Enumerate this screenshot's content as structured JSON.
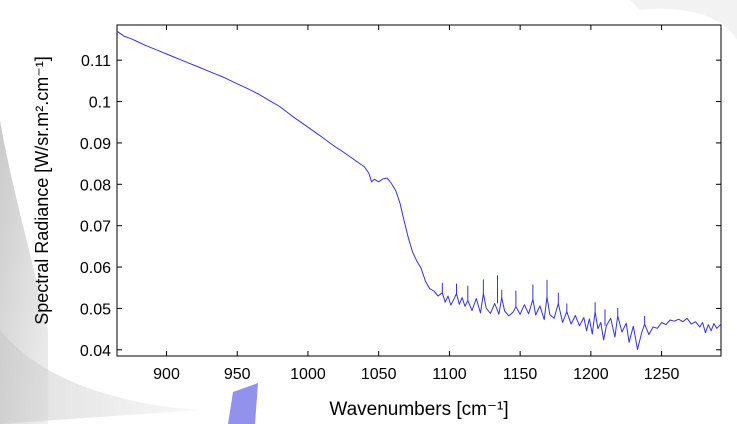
{
  "chart_data": {
    "type": "line",
    "title": "",
    "xlabel": "Wavenumbers [cm⁻¹]",
    "ylabel": "Spectral Radiance [W/sr.m².cm⁻¹]",
    "xlim": [
      865,
      1292
    ],
    "ylim": [
      0.0385,
      0.1185
    ],
    "xticks": [
      900,
      950,
      1000,
      1050,
      1100,
      1150,
      1200,
      1250
    ],
    "yticks": [
      0.04,
      0.05,
      0.06,
      0.07,
      0.08,
      0.09,
      0.1,
      0.11
    ],
    "ytick_labels": [
      "0.04",
      "0.05",
      "0.06",
      "0.07",
      "0.08",
      "0.09",
      "0.1",
      "0.11"
    ],
    "grid": false,
    "line_color": "#3333dd",
    "series": [
      {
        "points": [
          [
            865,
            0.117
          ],
          [
            870,
            0.1158
          ],
          [
            875,
            0.1152
          ],
          [
            880,
            0.1144
          ],
          [
            885,
            0.1136
          ],
          [
            890,
            0.1129
          ],
          [
            895,
            0.1122
          ],
          [
            900,
            0.1115
          ],
          [
            905,
            0.1108
          ],
          [
            910,
            0.1101
          ],
          [
            915,
            0.1094
          ],
          [
            920,
            0.1087
          ],
          [
            925,
            0.108
          ],
          [
            930,
            0.1073
          ],
          [
            935,
            0.1066
          ],
          [
            940,
            0.1059
          ],
          [
            945,
            0.1051
          ],
          [
            950,
            0.1043
          ],
          [
            955,
            0.1035
          ],
          [
            960,
            0.1027
          ],
          [
            965,
            0.1018
          ],
          [
            970,
            0.1008
          ],
          [
            975,
            0.0998
          ],
          [
            980,
            0.0988
          ],
          [
            985,
            0.0975
          ],
          [
            990,
            0.0962
          ],
          [
            995,
            0.095
          ],
          [
            1000,
            0.0938
          ],
          [
            1005,
            0.0926
          ],
          [
            1010,
            0.0914
          ],
          [
            1015,
            0.0901
          ],
          [
            1020,
            0.0889
          ],
          [
            1025,
            0.0878
          ],
          [
            1030,
            0.0866
          ],
          [
            1035,
            0.0854
          ],
          [
            1040,
            0.0842
          ],
          [
            1043,
            0.0827
          ],
          [
            1045,
            0.0806
          ],
          [
            1047,
            0.0812
          ],
          [
            1050,
            0.0806
          ],
          [
            1053,
            0.0813
          ],
          [
            1056,
            0.0815
          ],
          [
            1059,
            0.0802
          ],
          [
            1062,
            0.0785
          ],
          [
            1065,
            0.0755
          ],
          [
            1068,
            0.0712
          ],
          [
            1071,
            0.067
          ],
          [
            1074,
            0.0636
          ],
          [
            1077,
            0.0614
          ],
          [
            1080,
            0.0597
          ],
          [
            1083,
            0.0566
          ],
          [
            1086,
            0.0548
          ],
          [
            1089,
            0.0542
          ],
          [
            1092,
            0.053
          ],
          [
            1095,
            0.0538
          ],
          [
            1097,
            0.0515
          ],
          [
            1099,
            0.053
          ],
          [
            1101,
            0.0508
          ],
          [
            1103,
            0.0521
          ],
          [
            1105,
            0.0536
          ],
          [
            1107,
            0.051
          ],
          [
            1109,
            0.0526
          ],
          [
            1111,
            0.0505
          ],
          [
            1113,
            0.0519
          ],
          [
            1116,
            0.0495
          ],
          [
            1119,
            0.0524
          ],
          [
            1122,
            0.0489
          ],
          [
            1124,
            0.0536
          ],
          [
            1126,
            0.0501
          ],
          [
            1129,
            0.0488
          ],
          [
            1132,
            0.0512
          ],
          [
            1135,
            0.0486
          ],
          [
            1137,
            0.0526
          ],
          [
            1139,
            0.0494
          ],
          [
            1142,
            0.0482
          ],
          [
            1145,
            0.0491
          ],
          [
            1147,
            0.0504
          ],
          [
            1150,
            0.0486
          ],
          [
            1153,
            0.0509
          ],
          [
            1156,
            0.0487
          ],
          [
            1159,
            0.0522
          ],
          [
            1161,
            0.0484
          ],
          [
            1164,
            0.0506
          ],
          [
            1167,
            0.0473
          ],
          [
            1169,
            0.0528
          ],
          [
            1171,
            0.0485
          ],
          [
            1174,
            0.0476
          ],
          [
            1177,
            0.0512
          ],
          [
            1180,
            0.0466
          ],
          [
            1183,
            0.0492
          ],
          [
            1186,
            0.0462
          ],
          [
            1189,
            0.0483
          ],
          [
            1192,
            0.0458
          ],
          [
            1195,
            0.0478
          ],
          [
            1197,
            0.0446
          ],
          [
            1199,
            0.0475
          ],
          [
            1201,
            0.0438
          ],
          [
            1203,
            0.0492
          ],
          [
            1205,
            0.0451
          ],
          [
            1207,
            0.0466
          ],
          [
            1209,
            0.0424
          ],
          [
            1211,
            0.0458
          ],
          [
            1214,
            0.0476
          ],
          [
            1217,
            0.0431
          ],
          [
            1219,
            0.0482
          ],
          [
            1222,
            0.0443
          ],
          [
            1225,
            0.0464
          ],
          [
            1227,
            0.0418
          ],
          [
            1230,
            0.0457
          ],
          [
            1233,
            0.0401
          ],
          [
            1236,
            0.0442
          ],
          [
            1238,
            0.0462
          ],
          [
            1241,
            0.0437
          ],
          [
            1244,
            0.0455
          ],
          [
            1247,
            0.0452
          ],
          [
            1250,
            0.0466
          ],
          [
            1253,
            0.0461
          ],
          [
            1256,
            0.0472
          ],
          [
            1259,
            0.0469
          ],
          [
            1262,
            0.0474
          ],
          [
            1265,
            0.0468
          ],
          [
            1268,
            0.0476
          ],
          [
            1271,
            0.0462
          ],
          [
            1274,
            0.0468
          ],
          [
            1277,
            0.0455
          ],
          [
            1279,
            0.0466
          ],
          [
            1281,
            0.0441
          ],
          [
            1283,
            0.0461
          ],
          [
            1285,
            0.0446
          ],
          [
            1287,
            0.0463
          ],
          [
            1289,
            0.0452
          ],
          [
            1292,
            0.0462
          ]
        ]
      }
    ],
    "spikes": [
      [
        1095,
        0.0538,
        0.0562
      ],
      [
        1105,
        0.0536,
        0.056
      ],
      [
        1113,
        0.0519,
        0.0555
      ],
      [
        1124,
        0.0536,
        0.057
      ],
      [
        1134,
        0.0512,
        0.058
      ],
      [
        1137,
        0.0526,
        0.0545
      ],
      [
        1147,
        0.0504,
        0.0543
      ],
      [
        1159,
        0.0522,
        0.0558
      ],
      [
        1169,
        0.0528,
        0.0569
      ],
      [
        1177,
        0.0512,
        0.0538
      ],
      [
        1183,
        0.0492,
        0.0512
      ],
      [
        1203,
        0.0492,
        0.0515
      ],
      [
        1210,
        0.0458,
        0.0498
      ],
      [
        1219,
        0.0482,
        0.0501
      ],
      [
        1238,
        0.0462,
        0.0482
      ]
    ]
  }
}
